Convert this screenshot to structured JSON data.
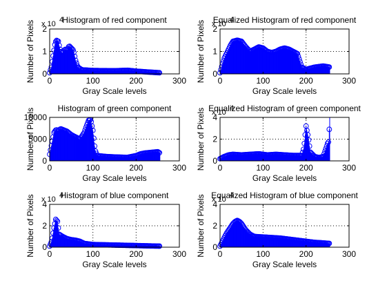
{
  "figure": {
    "background": "#ffffff",
    "series_color": "#0000ff",
    "grid_color": "#000000"
  },
  "chart_data": [
    {
      "type": "stem",
      "title": "Histogram of red component",
      "xlabel": "Gray Scale levels",
      "ylabel": "Number of Pixels",
      "xlim": [
        0,
        300
      ],
      "ylim": [
        0,
        2
      ],
      "xticks": [
        "0",
        "100",
        "200",
        "300"
      ],
      "yticks": [
        "0",
        "1",
        "2"
      ],
      "exponent_label": "x 10",
      "exponent_power": "4",
      "grid": true,
      "profile": [
        [
          0,
          0.05
        ],
        [
          4,
          0.3
        ],
        [
          8,
          0.8
        ],
        [
          12,
          1.3
        ],
        [
          15,
          1.5
        ],
        [
          20,
          1.45
        ],
        [
          25,
          1.0
        ],
        [
          30,
          0.95
        ],
        [
          35,
          1.1
        ],
        [
          40,
          1.05
        ],
        [
          45,
          1.25
        ],
        [
          50,
          1.15
        ],
        [
          55,
          1.05
        ],
        [
          60,
          0.6
        ],
        [
          65,
          0.3
        ],
        [
          75,
          0.18
        ],
        [
          100,
          0.15
        ],
        [
          150,
          0.14
        ],
        [
          180,
          0.16
        ],
        [
          200,
          0.12
        ],
        [
          230,
          0.08
        ],
        [
          255,
          0.05
        ]
      ]
    },
    {
      "type": "stem",
      "title": "Equalized Histogram of red component",
      "xlabel": "Gray Scale levels",
      "ylabel": "Number of Pixels",
      "xlim": [
        0,
        300
      ],
      "ylim": [
        0,
        2
      ],
      "xticks": [
        "0",
        "100",
        "200",
        "300"
      ],
      "yticks": [
        "0",
        "1",
        "2"
      ],
      "exponent_label": "x 10",
      "exponent_power": "4",
      "grid": true,
      "profile": [
        [
          0,
          0.05
        ],
        [
          5,
          0.4
        ],
        [
          10,
          0.7
        ],
        [
          15,
          0.9
        ],
        [
          20,
          1.1
        ],
        [
          25,
          1.3
        ],
        [
          30,
          1.45
        ],
        [
          40,
          1.5
        ],
        [
          50,
          1.45
        ],
        [
          60,
          1.2
        ],
        [
          70,
          1.0
        ],
        [
          80,
          1.1
        ],
        [
          90,
          1.2
        ],
        [
          100,
          1.15
        ],
        [
          110,
          1.0
        ],
        [
          120,
          0.95
        ],
        [
          130,
          1.0
        ],
        [
          140,
          1.1
        ],
        [
          150,
          1.15
        ],
        [
          160,
          1.1
        ],
        [
          170,
          1.0
        ],
        [
          180,
          0.9
        ],
        [
          190,
          0.3
        ],
        [
          200,
          0.2
        ],
        [
          220,
          0.3
        ],
        [
          240,
          0.35
        ],
        [
          255,
          0.3
        ]
      ]
    },
    {
      "type": "stem",
      "title": "Histogram of green component",
      "xlabel": "Gray Scale levels",
      "ylabel": "Number of Pixels",
      "xlim": [
        0,
        300
      ],
      "ylim": [
        0,
        10000
      ],
      "xticks": [
        "0",
        "100",
        "200",
        "300"
      ],
      "yticks": [
        "0",
        "5000",
        "10000"
      ],
      "exponent_label": "",
      "exponent_power": "",
      "grid": true,
      "profile": [
        [
          0,
          1500
        ],
        [
          5,
          4000
        ],
        [
          10,
          6500
        ],
        [
          15,
          7200
        ],
        [
          20,
          6800
        ],
        [
          25,
          7400
        ],
        [
          30,
          7200
        ],
        [
          40,
          6800
        ],
        [
          50,
          6000
        ],
        [
          60,
          5500
        ],
        [
          70,
          5000
        ],
        [
          80,
          6500
        ],
        [
          85,
          8000
        ],
        [
          90,
          9300
        ],
        [
          95,
          9500
        ],
        [
          100,
          7000
        ],
        [
          105,
          2500
        ],
        [
          110,
          1200
        ],
        [
          130,
          1000
        ],
        [
          150,
          900
        ],
        [
          180,
          800
        ],
        [
          200,
          1200
        ],
        [
          210,
          1600
        ],
        [
          220,
          1800
        ],
        [
          230,
          1900
        ],
        [
          240,
          2000
        ],
        [
          250,
          2100
        ],
        [
          255,
          1800
        ]
      ]
    },
    {
      "type": "stem",
      "title": "Equalized Histogram of green component",
      "xlabel": "Gray Scale levels",
      "ylabel": "Number of Pixels",
      "xlim": [
        0,
        300
      ],
      "ylim": [
        0,
        4
      ],
      "xticks": [
        "0",
        "100",
        "200",
        "300"
      ],
      "yticks": [
        "0",
        "2",
        "4"
      ],
      "exponent_label": "x 10",
      "exponent_power": "4",
      "grid": true,
      "profile": [
        [
          0,
          0.2
        ],
        [
          10,
          0.4
        ],
        [
          20,
          0.55
        ],
        [
          30,
          0.6
        ],
        [
          50,
          0.55
        ],
        [
          70,
          0.6
        ],
        [
          90,
          0.65
        ],
        [
          110,
          0.55
        ],
        [
          130,
          0.6
        ],
        [
          150,
          0.55
        ],
        [
          170,
          0.5
        ],
        [
          190,
          0.5
        ],
        [
          195,
          1.2
        ],
        [
          200,
          3.2
        ],
        [
          205,
          2.2
        ],
        [
          210,
          0.8
        ],
        [
          220,
          0.4
        ],
        [
          230,
          0.3
        ],
        [
          240,
          0.4
        ],
        [
          250,
          1.6
        ],
        [
          253,
          1.8
        ],
        [
          255,
          4.0
        ]
      ]
    },
    {
      "type": "stem",
      "title": "Histogram of blue component",
      "xlabel": "Gray Scale levels",
      "ylabel": "Number of Pixels",
      "xlim": [
        0,
        300
      ],
      "ylim": [
        0,
        4
      ],
      "xticks": [
        "0",
        "100",
        "200",
        "300"
      ],
      "yticks": [
        "0",
        "2",
        "4"
      ],
      "exponent_label": "x 10",
      "exponent_power": "4",
      "grid": true,
      "profile": [
        [
          0,
          0.1
        ],
        [
          5,
          0.6
        ],
        [
          10,
          1.8
        ],
        [
          14,
          2.6
        ],
        [
          18,
          2.4
        ],
        [
          22,
          1.2
        ],
        [
          30,
          1.0
        ],
        [
          40,
          0.8
        ],
        [
          50,
          0.7
        ],
        [
          60,
          0.65
        ],
        [
          70,
          0.55
        ],
        [
          80,
          0.35
        ],
        [
          100,
          0.25
        ],
        [
          150,
          0.2
        ],
        [
          200,
          0.15
        ],
        [
          230,
          0.12
        ],
        [
          255,
          0.1
        ]
      ]
    },
    {
      "type": "stem",
      "title": "Equalized Histogram of blue component",
      "xlabel": "Gray Scale levels",
      "ylabel": "Number of Pixels",
      "xlim": [
        0,
        300
      ],
      "ylim": [
        0,
        4
      ],
      "xticks": [
        "0",
        "100",
        "200",
        "300"
      ],
      "yticks": [
        "0",
        "2",
        "4"
      ],
      "exponent_label": "x 10",
      "exponent_power": "4",
      "grid": true,
      "profile": [
        [
          0,
          0.1
        ],
        [
          5,
          0.5
        ],
        [
          10,
          0.9
        ],
        [
          15,
          1.3
        ],
        [
          20,
          1.6
        ],
        [
          25,
          1.9
        ],
        [
          30,
          2.2
        ],
        [
          35,
          2.4
        ],
        [
          40,
          2.5
        ],
        [
          45,
          2.4
        ],
        [
          50,
          2.2
        ],
        [
          60,
          1.6
        ],
        [
          70,
          1.2
        ],
        [
          80,
          1.0
        ],
        [
          100,
          0.95
        ],
        [
          120,
          0.9
        ],
        [
          140,
          0.85
        ],
        [
          160,
          0.75
        ],
        [
          180,
          0.65
        ],
        [
          200,
          0.55
        ],
        [
          220,
          0.45
        ],
        [
          240,
          0.4
        ],
        [
          255,
          0.35
        ]
      ]
    }
  ]
}
